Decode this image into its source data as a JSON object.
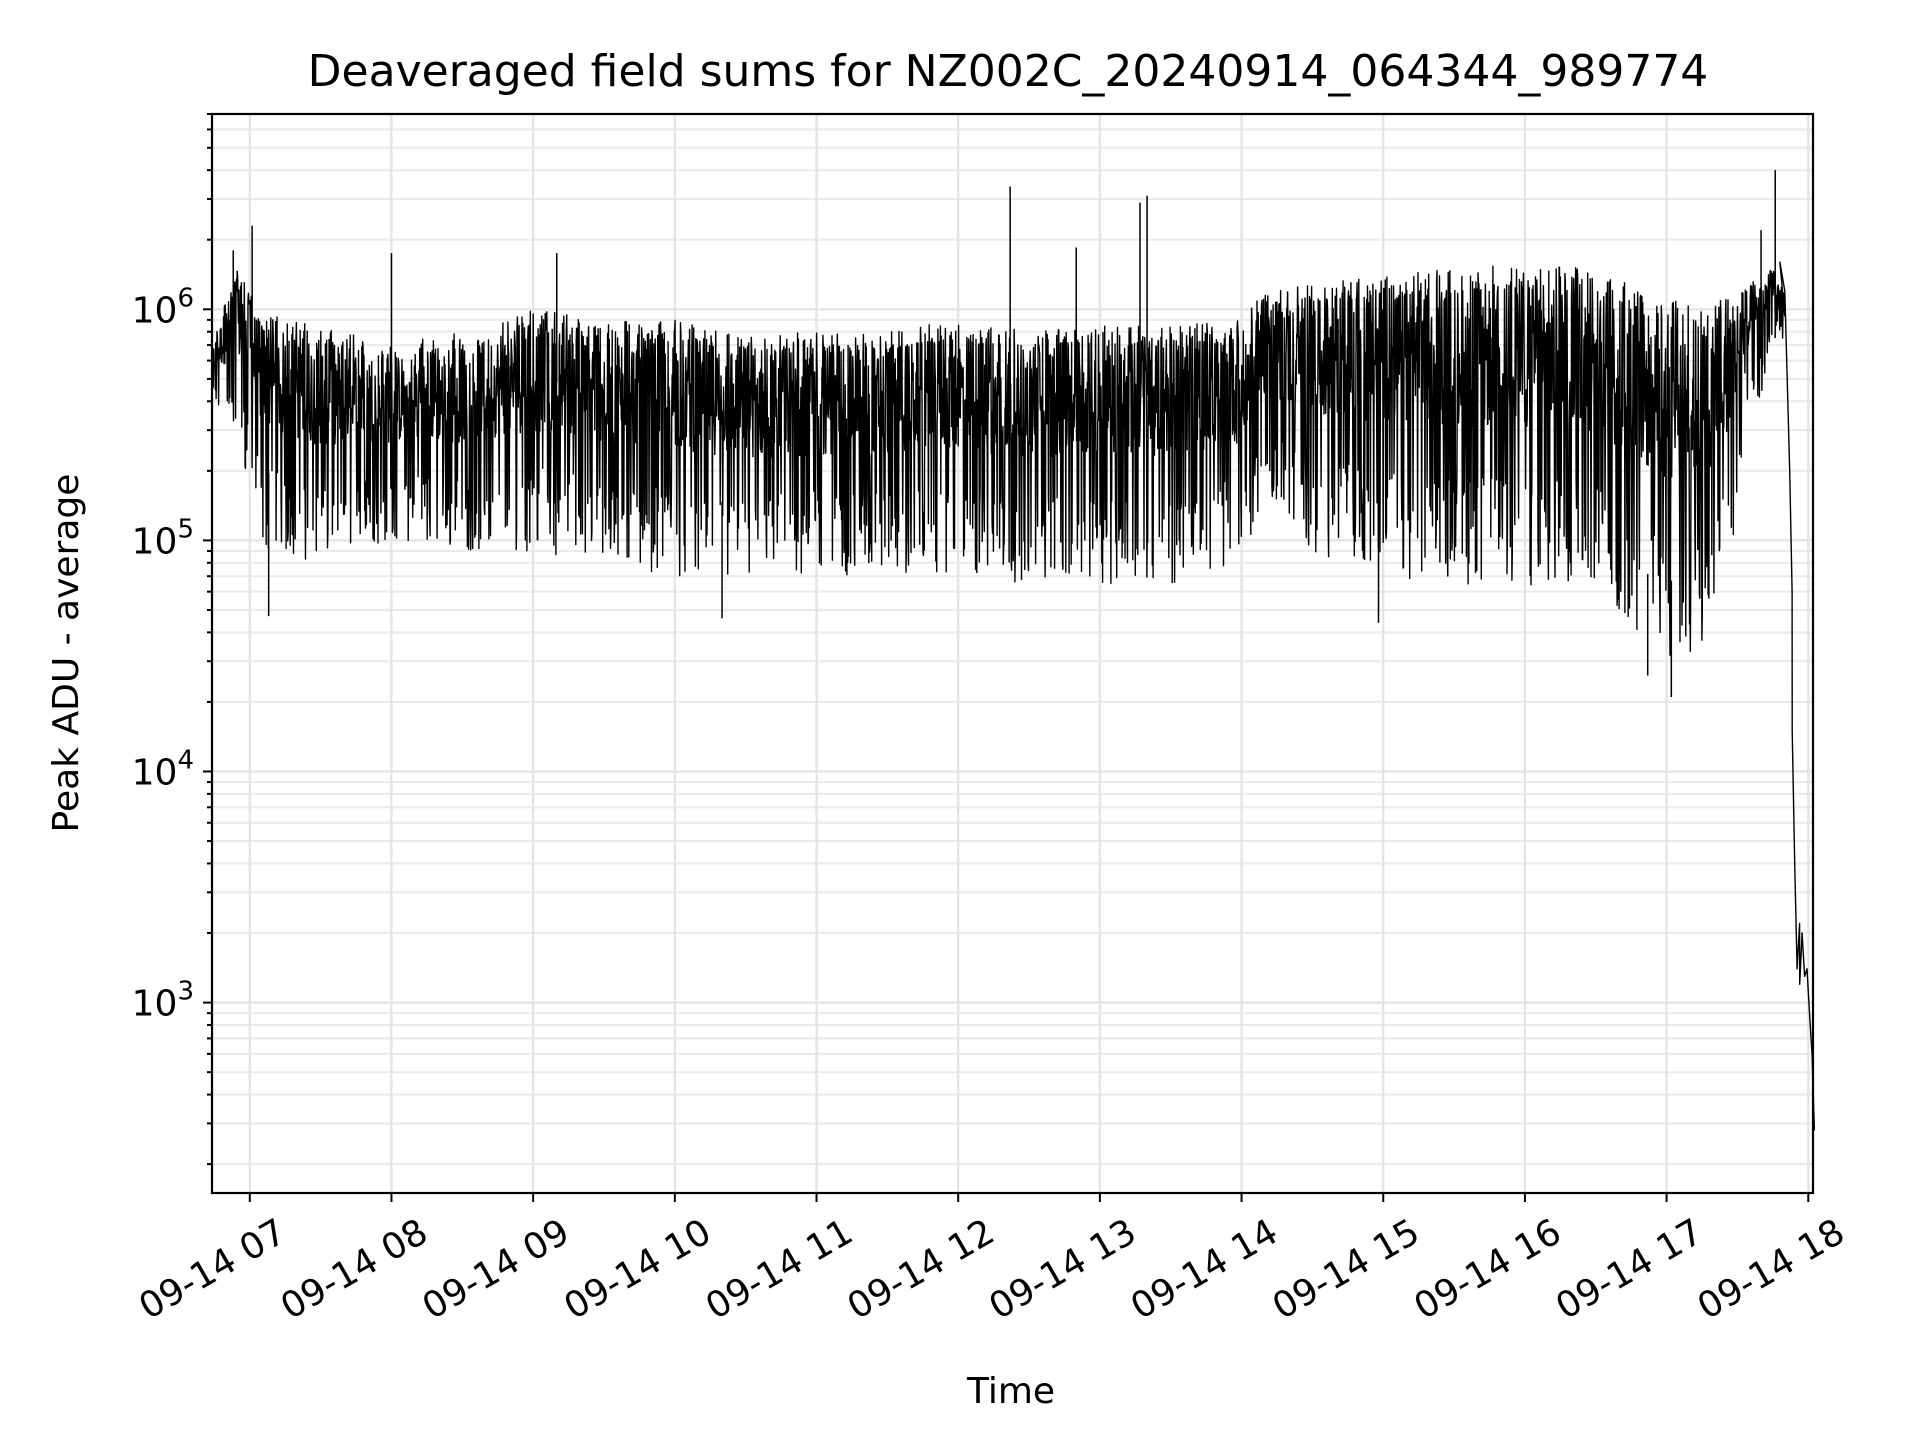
{
  "chart_data": {
    "type": "line",
    "title": "Deaveraged field sums for NZ002C_20240914_064344_989774",
    "xlabel": "Time",
    "ylabel": "Peak ADU - average",
    "yscale": "log",
    "grid": true,
    "x_date": "2024-09-14",
    "xlim": [
      "06:44",
      "18:02"
    ],
    "ylim": [
      150,
      7000000
    ],
    "x_ticks": [
      "07:00",
      "08:00",
      "09:00",
      "10:00",
      "11:00",
      "12:00",
      "13:00",
      "14:00",
      "15:00",
      "16:00",
      "17:00",
      "18:00"
    ],
    "x_tick_labels": [
      "09-14 07",
      "09-14 08",
      "09-14 09",
      "09-14 10",
      "09-14 11",
      "09-14 12",
      "09-14 13",
      "09-14 14",
      "09-14 15",
      "09-14 16",
      "09-14 17",
      "09-14 18"
    ],
    "y_ticks": [
      1000,
      10000,
      100000,
      1000000
    ],
    "y_tick_labels": [
      {
        "base": "10",
        "exp": "3"
      },
      {
        "base": "10",
        "exp": "4"
      },
      {
        "base": "10",
        "exp": "5"
      },
      {
        "base": "10",
        "exp": "6"
      }
    ],
    "series": [
      {
        "color": "#000000",
        "envelope": [
          {
            "x": "06:44",
            "low": 380000,
            "high": 700000
          },
          {
            "x": "06:54",
            "low": 280000,
            "high": 1500000
          },
          {
            "x": "07:06",
            "low": 90000,
            "high": 950000
          },
          {
            "x": "07:30",
            "low": 80000,
            "high": 850000
          },
          {
            "x": "08:00",
            "low": 100000,
            "high": 700000
          },
          {
            "x": "08:30",
            "low": 90000,
            "high": 800000
          },
          {
            "x": "09:00",
            "low": 90000,
            "high": 1000000
          },
          {
            "x": "09:30",
            "low": 80000,
            "high": 900000
          },
          {
            "x": "10:00",
            "low": 70000,
            "high": 900000
          },
          {
            "x": "10:30",
            "low": 65000,
            "high": 800000
          },
          {
            "x": "11:00",
            "low": 70000,
            "high": 800000
          },
          {
            "x": "11:30",
            "low": 70000,
            "high": 800000
          },
          {
            "x": "12:00",
            "low": 70000,
            "high": 900000
          },
          {
            "x": "12:30",
            "low": 65000,
            "high": 800000
          },
          {
            "x": "13:00",
            "low": 65000,
            "high": 850000
          },
          {
            "x": "13:30",
            "low": 65000,
            "high": 850000
          },
          {
            "x": "14:00",
            "low": 80000,
            "high": 900000
          },
          {
            "x": "14:10",
            "low": 150000,
            "high": 1200000
          },
          {
            "x": "14:30",
            "low": 90000,
            "high": 1300000
          },
          {
            "x": "15:00",
            "low": 70000,
            "high": 1400000
          },
          {
            "x": "15:30",
            "low": 65000,
            "high": 1500000
          },
          {
            "x": "16:00",
            "low": 60000,
            "high": 1600000
          },
          {
            "x": "16:30",
            "low": 60000,
            "high": 1500000
          },
          {
            "x": "16:45",
            "low": 35000,
            "high": 1300000
          },
          {
            "x": "17:00",
            "low": 30000,
            "high": 1100000
          },
          {
            "x": "17:20",
            "low": 35000,
            "high": 1100000
          },
          {
            "x": "17:35",
            "low": 250000,
            "high": 1400000
          },
          {
            "x": "17:46",
            "low": 800000,
            "high": 1500000
          },
          {
            "x": "17:50",
            "low": 600000,
            "high": 1200000
          }
        ],
        "spikes": [
          {
            "x": "06:53",
            "y": 1800000
          },
          {
            "x": "07:01",
            "y": 2300000
          },
          {
            "x": "07:08",
            "y": 47000
          },
          {
            "x": "08:00",
            "y": 1750000
          },
          {
            "x": "09:10",
            "y": 1750000
          },
          {
            "x": "10:20",
            "y": 46000
          },
          {
            "x": "12:22",
            "y": 3400000
          },
          {
            "x": "12:50",
            "y": 1850000
          },
          {
            "x": "13:17",
            "y": 2900000
          },
          {
            "x": "13:20",
            "y": 3100000
          },
          {
            "x": "14:58",
            "y": 44000
          },
          {
            "x": "16:52",
            "y": 26000
          },
          {
            "x": "17:02",
            "y": 21000
          },
          {
            "x": "17:40",
            "y": 2200000
          },
          {
            "x": "17:46",
            "y": 4000000
          }
        ],
        "tail": [
          {
            "x": "17:48",
            "y": 1600000
          },
          {
            "x": "17:50",
            "y": 1200000
          },
          {
            "x": "17:51",
            "y": 500000
          },
          {
            "x": "17:52",
            "y": 200000
          },
          {
            "x": "17:53",
            "y": 60000
          },
          {
            "x": "17:53",
            "y": 15000
          },
          {
            "x": "17:54",
            "y": 4000
          },
          {
            "x": "17:55",
            "y": 1400
          },
          {
            "x": "17:56",
            "y": 2200
          },
          {
            "x": "17:56",
            "y": 1200
          },
          {
            "x": "17:57",
            "y": 2000
          },
          {
            "x": "17:58",
            "y": 1300
          },
          {
            "x": "17:59",
            "y": 1400
          },
          {
            "x": "18:00",
            "y": 900
          },
          {
            "x": "18:01",
            "y": 600
          },
          {
            "x": "18:02",
            "y": 280
          }
        ]
      }
    ]
  }
}
